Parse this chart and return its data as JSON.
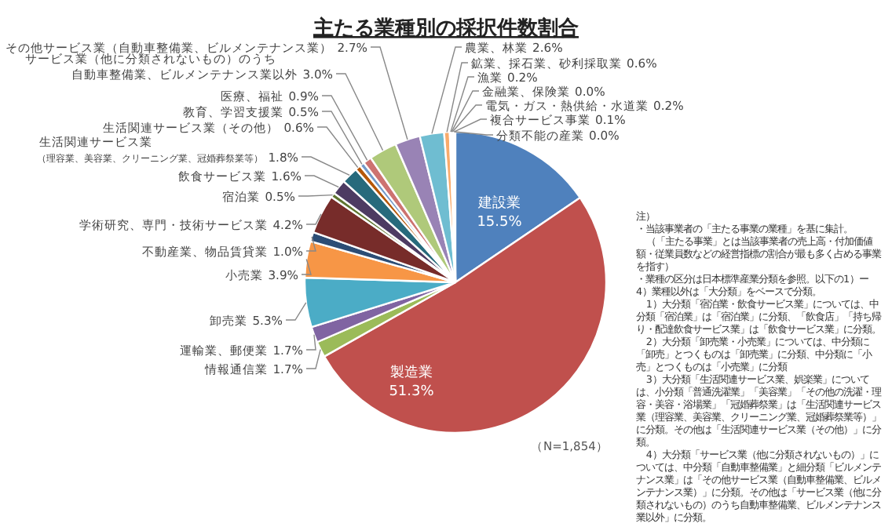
{
  "chart_data": {
    "type": "pie",
    "title": "主たる業種別の採択件数割合",
    "categories": [
      "建設業",
      "製造業",
      "情報通信業",
      "運輸業、郵便業",
      "卸売業",
      "小売業",
      "不動産業、物品賃貸業",
      "学術研究、専門・技術サービス業",
      "宿泊業",
      "飲食サービス業",
      "生活関連サービス業（理容業、美容業、クリーニング業、冠婚葬祭業等）",
      "生活関連サービス業（その他）",
      "教育、学習支援業",
      "医療、福祉",
      "サービス業（他に分類されないもの）のうち自動車整備業、ビルメンテナンス業以外",
      "その他サービス業（自動車整備業、ビルメンテナンス業）",
      "農業、林業",
      "鉱業、採石業、砂利採取業",
      "漁業",
      "金融業、保険業",
      "電気・ガス・熱供給・水道業",
      "複合サービス事業",
      "分類不能の産業"
    ],
    "values": [
      15.5,
      51.3,
      1.7,
      1.7,
      5.3,
      3.9,
      1.0,
      4.2,
      0.5,
      1.6,
      1.8,
      0.6,
      0.5,
      0.9,
      3.0,
      2.7,
      2.6,
      0.6,
      0.2,
      0.0,
      0.2,
      0.1,
      0.0
    ],
    "value_labels": [
      "15.5%",
      "51.3%",
      "1.7%",
      "1.7%",
      "5.3%",
      "3.9%",
      "1.0%",
      "4.2%",
      "0.5%",
      "1.6%",
      "1.8%",
      "0.6%",
      "0.5%",
      "0.9%",
      "3.0%",
      "2.7%",
      "2.6%",
      "0.6%",
      "0.2%",
      "0.0%",
      "0.2%",
      "0.1%",
      "0.0%"
    ],
    "colors": [
      "#4f81bd",
      "#c0504d",
      "#9bbb59",
      "#8064a2",
      "#4bacc6",
      "#f79646",
      "#2c4d75",
      "#772c2a",
      "#5f7530",
      "#4d3b62",
      "#276a7c",
      "#b65708",
      "#729aca",
      "#cd7371",
      "#afc97a",
      "#9983b5",
      "#6fbdd1",
      "#f9ab6b",
      "#3a679c",
      "#9e3b38",
      "#7f9c40",
      "#664f83",
      "#358ea6"
    ],
    "annotations": [
      "（N=1,854）",
      "注）",
      "・当該事業者の「主たる事業の業種」を基に集計。",
      "（「主たる事業」とは当該事業者の売上高・付加価値額・従業員数などの経営指標の割合が最も多く占める事業を指す）",
      "・業種の区分は日本標準産業分類を参照。以下の1）ー4）業種以外は「大分類」をベースで分類。",
      "1）大分類「宿泊業・飲食サービス業」については、中分類「宿泊業」は「宿泊業」に分類、「飲食店」「持ち帰り・配達飲食サービス業」は「飲食サービス業」に分類。",
      "2）大分類「卸売業・小売業」については、中分類に「卸売」とつくものは「卸売業」に分類、中分類に「小売」とつくものは「小売業」に分類",
      "3）大分類「生活関連サービス業、娯楽業」については、小分類「普通洗濯業」「美容業」「その他の洗濯・理容・美容・浴場業」「冠婚葬祭業」は「生活関連サービス業（理容業、美容業、クリーニング業、冠婚葬祭業等）」に分類。その他は「生活関連サービス業（その他）」に分類。",
      "4）大分類「サービス業（他に分類されないもの）」については、中分類「自動車整備業」と細分類「ビルメンテナンス業」は「その他サービス業（自動車整備業、ビルメンテナンス業）」に分類。その他は「サービス業（他に分類されないもの）のうち自動車整備業、ビルメンテナンス業以外」に分類。"
    ]
  }
}
